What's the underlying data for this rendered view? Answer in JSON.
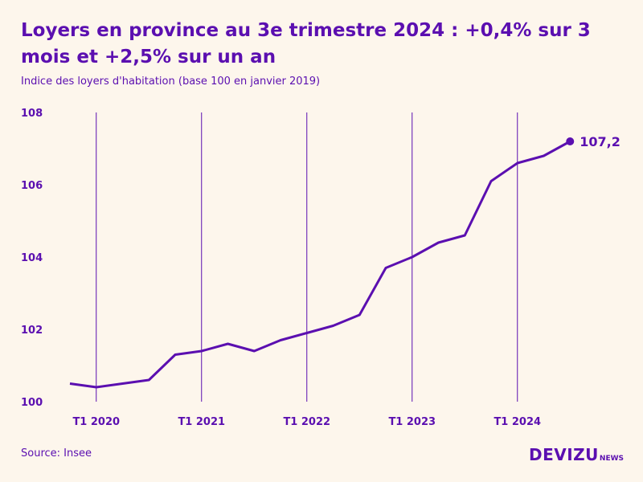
{
  "header": {
    "title": "Loyers en province au 3e trimestre 2024 : +0,4% sur 3 mois et +2,5% sur un an",
    "subtitle": "Indice des loyers d'habitation (base 100 en janvier 2019)"
  },
  "footer": {
    "source": "Source: Insee",
    "logo_main": "DEVIZU",
    "logo_sub": "NEWS"
  },
  "colors": {
    "accent": "#5b0fb0",
    "background": "#fdf6ec"
  },
  "chart_data": {
    "type": "line",
    "x": [
      "T1 2020",
      "T2 2020",
      "T3 2020",
      "T4 2020",
      "T1 2021",
      "T2 2021",
      "T3 2021",
      "T4 2021",
      "T1 2022",
      "T2 2022",
      "T3 2022",
      "T4 2022",
      "T1 2023",
      "T2 2023",
      "T3 2023",
      "T4 2023",
      "T1 2024",
      "T2 2024",
      "T3 2024"
    ],
    "series": [
      {
        "values": [
          100.4,
          100.5,
          100.6,
          101.3,
          101.4,
          101.6,
          101.4,
          101.7,
          101.9,
          102.1,
          102.4,
          103.7,
          104.0,
          104.4,
          104.6,
          106.1,
          106.6,
          106.8,
          107.2
        ]
      }
    ],
    "first_point": {
      "x": "T4 2019",
      "y": 100.5
    },
    "end_label": "107,2",
    "xtick_labels": [
      "T1 2020",
      "T1 2021",
      "T1 2022",
      "T1 2023",
      "T1 2024"
    ],
    "ytick_labels": [
      "100",
      "102",
      "104",
      "106",
      "108"
    ],
    "yticks": [
      100,
      102,
      104,
      106,
      108
    ],
    "ylim": [
      100,
      108
    ],
    "grid": "vertical lines at T1 of each year",
    "legend": "none"
  }
}
